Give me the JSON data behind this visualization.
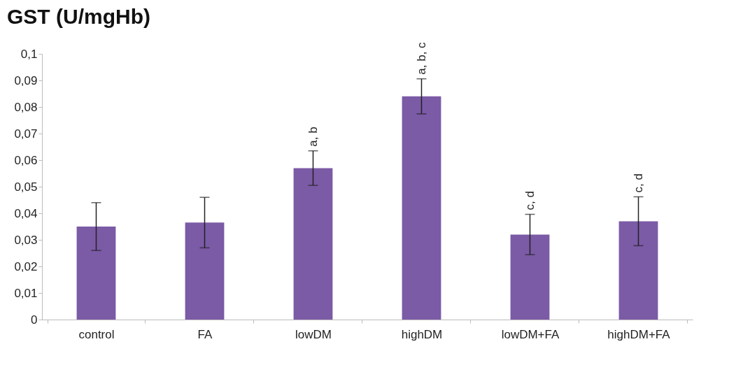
{
  "chart_data": {
    "type": "bar",
    "title": "GST (U/mgHb)",
    "categories": [
      "control",
      "FA",
      "lowDM",
      "highDM",
      "lowDM+FA",
      "highDM+FA"
    ],
    "values": [
      0.035,
      0.0365,
      0.057,
      0.084,
      0.032,
      0.037
    ],
    "errors": [
      0.009,
      0.0095,
      0.0065,
      0.0066,
      0.0076,
      0.0092
    ],
    "color": "#7b5aa6",
    "ylim": [
      0,
      0.1
    ],
    "yticks": [
      {
        "value": 0,
        "label": "0"
      },
      {
        "value": 0.01,
        "label": "0,01"
      },
      {
        "value": 0.02,
        "label": "0,02"
      },
      {
        "value": 0.03,
        "label": "0,03"
      },
      {
        "value": 0.04,
        "label": "0,04"
      },
      {
        "value": 0.05,
        "label": "0,05"
      },
      {
        "value": 0.06,
        "label": "0,06"
      },
      {
        "value": 0.07,
        "label": "0,07"
      },
      {
        "value": 0.08,
        "label": "0,08"
      },
      {
        "value": 0.09,
        "label": "0,09"
      },
      {
        "value": 0.1,
        "label": "0,1"
      }
    ],
    "grid": false,
    "annotations": [
      {
        "text": "a, b",
        "x": "lowDM",
        "y": 0.0635
      },
      {
        "text": "a, b, c",
        "x": "highDM",
        "y": 0.0906
      },
      {
        "text": "c, d",
        "x": "lowDM+FA",
        "y": 0.0396
      },
      {
        "text": "c, d",
        "x": "highDM+FA",
        "y": 0.0462
      }
    ]
  }
}
